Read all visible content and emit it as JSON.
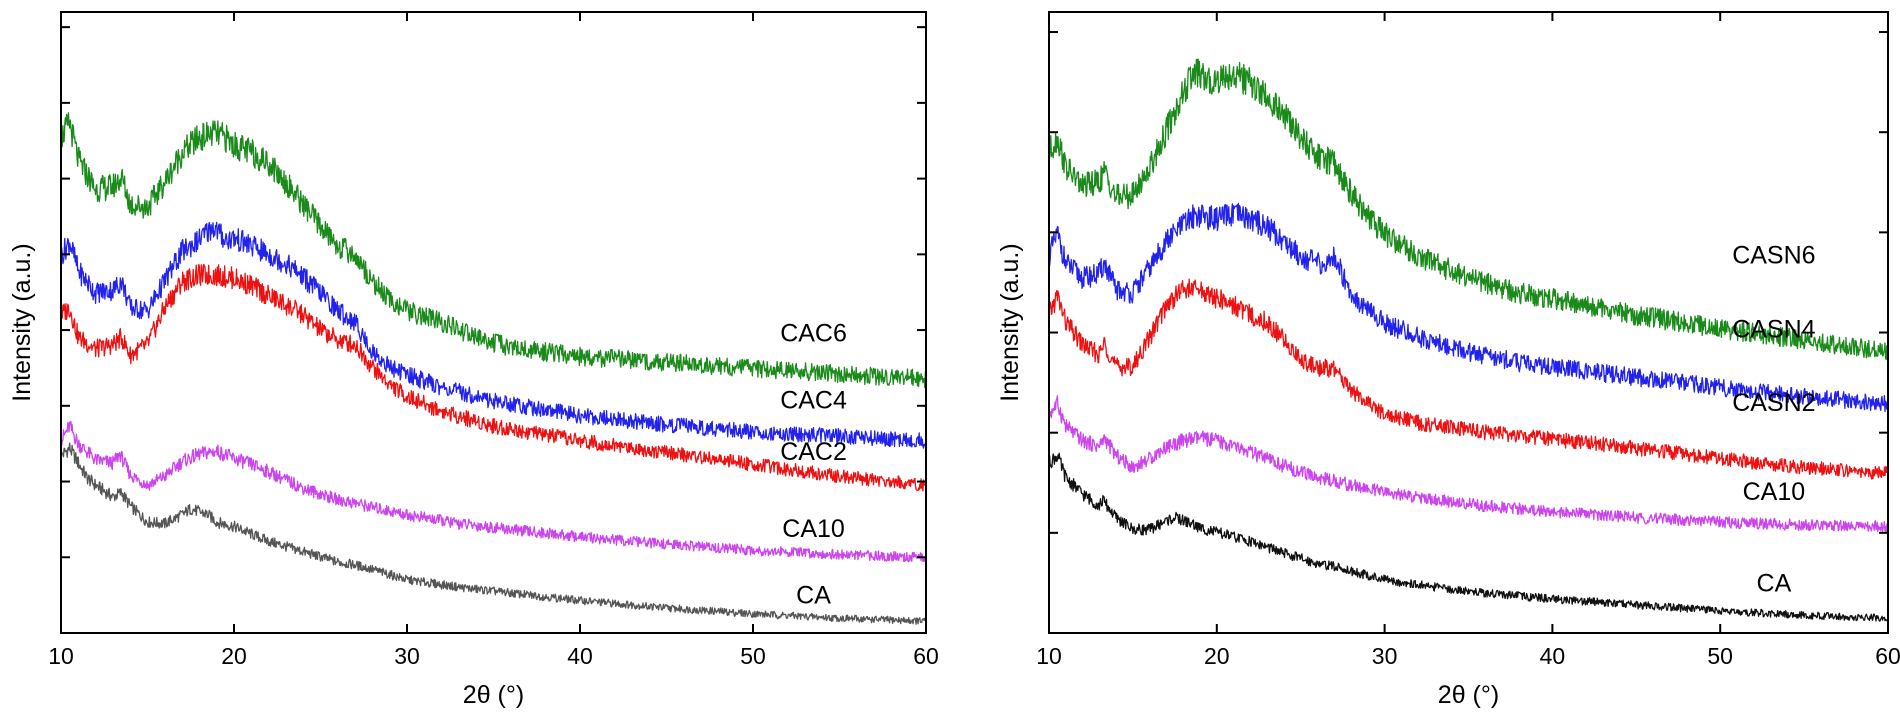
{
  "chart_data": [
    {
      "type": "line",
      "panel": "left",
      "xlabel": "2θ (°)",
      "ylabel": "Intensity (a.u.)",
      "xlim": [
        10,
        60
      ],
      "xticks": [
        10,
        20,
        30,
        40,
        50,
        60
      ],
      "y_tick_labels_shown": false,
      "grid": false,
      "legend": "none (curves labeled directly at right)",
      "y_scale": "arbitrary units, curves vertically offset",
      "series": [
        {
          "name": "CA",
          "color": "#555555",
          "label_at": [
            53.5,
            20
          ],
          "x": [
            10,
            10.5,
            11,
            11.5,
            12,
            12.5,
            13,
            13.5,
            14,
            15,
            16,
            17,
            17.5,
            18,
            18.5,
            19,
            20,
            21,
            22,
            24,
            26,
            27,
            28,
            30,
            33,
            36,
            40,
            45,
            50,
            55,
            60
          ],
          "y": [
            120,
            125,
            115,
            105,
            100,
            96,
            92,
            95,
            86,
            75,
            74,
            80,
            84,
            82,
            80,
            75,
            72,
            67,
            62,
            55,
            48,
            46,
            43,
            36,
            31,
            27,
            22,
            17,
            13,
            10,
            8
          ]
        },
        {
          "name": "CA10",
          "color": "#cc44ee",
          "label_at": [
            53.5,
            65
          ],
          "x": [
            10,
            10.5,
            11,
            12,
            13,
            13.4,
            14,
            15,
            16,
            17,
            18,
            19,
            20,
            21,
            22,
            24,
            26,
            27,
            28,
            30,
            33,
            36,
            40,
            45,
            50,
            55,
            60
          ],
          "y": [
            130,
            140,
            128,
            117,
            115,
            121,
            107,
            100,
            106,
            116,
            121,
            123,
            118,
            114,
            109,
            98,
            90,
            88,
            85,
            80,
            74,
            70,
            65,
            60,
            56,
            53,
            51
          ]
        },
        {
          "name": "CAC2",
          "color": "#ee1111",
          "label_at": [
            53.5,
            117
          ],
          "x": [
            10,
            10.5,
            11,
            12,
            13,
            13.5,
            14,
            15,
            16,
            17,
            18,
            19,
            20,
            21,
            22,
            23,
            24,
            25,
            26,
            27,
            28,
            29,
            30,
            32,
            35,
            38,
            40,
            45,
            50,
            55,
            60
          ],
          "y": [
            215,
            220,
            200,
            192,
            195,
            200,
            188,
            195,
            220,
            238,
            242,
            242,
            240,
            235,
            228,
            222,
            215,
            205,
            198,
            195,
            180,
            168,
            160,
            150,
            140,
            134,
            130,
            122,
            114,
            106,
            100
          ]
        },
        {
          "name": "CAC4",
          "color": "#2222ee",
          "label_at": [
            53.5,
            152
          ],
          "x": [
            10,
            10.5,
            11,
            12,
            13,
            13.5,
            14,
            15,
            16,
            17,
            18,
            18.8,
            19.5,
            20,
            21,
            22,
            23,
            24,
            25,
            26,
            27,
            28,
            29,
            30,
            32,
            35,
            38,
            40,
            45,
            50,
            55,
            60
          ],
          "y": [
            255,
            265,
            245,
            230,
            232,
            238,
            220,
            218,
            238,
            258,
            266,
            275,
            266,
            267,
            262,
            256,
            250,
            241,
            230,
            218,
            210,
            190,
            180,
            175,
            166,
            157,
            151,
            147,
            141,
            136,
            133,
            130
          ]
        },
        {
          "name": "CAC6",
          "color": "#1a8a1a",
          "label_at": [
            53.5,
            197
          ],
          "x": [
            10,
            10.5,
            11,
            12,
            13,
            13.5,
            14,
            15,
            16,
            17,
            18,
            18.8,
            19.5,
            20,
            21,
            22,
            23,
            24,
            25,
            26,
            27,
            28,
            29,
            30,
            32,
            34,
            36,
            40,
            45,
            50,
            55,
            60
          ],
          "y": [
            335,
            345,
            320,
            300,
            302,
            308,
            290,
            288,
            305,
            325,
            335,
            338,
            335,
            330,
            325,
            318,
            305,
            290,
            275,
            262,
            255,
            238,
            225,
            218,
            210,
            200,
            193,
            187,
            183,
            179,
            175,
            172
          ]
        }
      ]
    },
    {
      "type": "line",
      "panel": "right",
      "xlabel": "2θ (°)",
      "ylabel": "Intensity (a.u.)",
      "xlim": [
        10,
        60
      ],
      "xticks": [
        10,
        20,
        30,
        40,
        50,
        60
      ],
      "y_tick_labels_shown": false,
      "grid": false,
      "legend": "none (curves labeled directly at right)",
      "y_scale": "arbitrary units, curves vertically offset",
      "series": [
        {
          "name": "CA",
          "color": "#111111",
          "label_at": [
            53.2,
            28
          ],
          "x": [
            10,
            10.5,
            11,
            12,
            13,
            13.2,
            14,
            15,
            16,
            17,
            17.5,
            18,
            18.5,
            19,
            20,
            22,
            24,
            26,
            27,
            28,
            30,
            33,
            36,
            40,
            45,
            50,
            55,
            60
          ],
          "y": [
            115,
            120,
            105,
            94,
            86,
            90,
            78,
            70,
            70,
            76,
            78,
            76,
            74,
            71,
            68,
            62,
            54,
            47,
            45,
            42,
            36,
            31,
            27,
            23,
            19,
            15,
            12,
            10
          ]
        },
        {
          "name": "CA10",
          "color": "#cc44ee",
          "label_at": [
            53.2,
            90
          ],
          "x": [
            10,
            10.5,
            11,
            12,
            13,
            13.3,
            14,
            15,
            16,
            17,
            18,
            19,
            20,
            21,
            22,
            24,
            26,
            27,
            28,
            30,
            33,
            36,
            40,
            45,
            50,
            55,
            60
          ],
          "y": [
            148,
            155,
            140,
            130,
            126,
            132,
            120,
            112,
            118,
            126,
            130,
            132,
            130,
            126,
            122,
            113,
            105,
            103,
            100,
            95,
            90,
            86,
            82,
            78,
            75,
            73,
            72
          ]
        },
        {
          "name": "CASN2",
          "color": "#ee1111",
          "label_at": [
            53.2,
            150
          ],
          "x": [
            10,
            10.5,
            11,
            12,
            13,
            13.3,
            14,
            15,
            16,
            17,
            18,
            19,
            20,
            21,
            22,
            23,
            24,
            25,
            26,
            27,
            28,
            29,
            30,
            32,
            35,
            38,
            40,
            45,
            50,
            55,
            60
          ],
          "y": [
            215,
            228,
            210,
            195,
            188,
            196,
            180,
            180,
            200,
            222,
            233,
            232,
            226,
            222,
            215,
            210,
            198,
            185,
            180,
            178,
            165,
            155,
            148,
            142,
            137,
            133,
            131,
            125,
            118,
            112,
            108
          ]
        },
        {
          "name": "CASN4",
          "color": "#2222ee",
          "label_at": [
            53.2,
            200
          ],
          "x": [
            10,
            10.5,
            11,
            12,
            13,
            13.3,
            14,
            15,
            16,
            17,
            18,
            18.7,
            20,
            21,
            22,
            23,
            24,
            25,
            26,
            26.5,
            27,
            28,
            29,
            30,
            32,
            35,
            38,
            40,
            45,
            50,
            55,
            60
          ],
          "y": [
            255,
            270,
            250,
            240,
            243,
            250,
            232,
            230,
            247,
            265,
            276,
            283,
            280,
            283,
            280,
            275,
            265,
            255,
            250,
            248,
            255,
            230,
            218,
            210,
            200,
            190,
            183,
            180,
            173,
            166,
            160,
            155
          ]
        },
        {
          "name": "CASN6",
          "color": "#1a8a1a",
          "label_at": [
            53.2,
            250
          ],
          "x": [
            10,
            10.5,
            11,
            12,
            13,
            13.3,
            14,
            15,
            16,
            17,
            18,
            18.7,
            19.5,
            20,
            21,
            22,
            23,
            24,
            25,
            26,
            27,
            28,
            29,
            30,
            32,
            35,
            38,
            40,
            45,
            50,
            55,
            60
          ],
          "y": [
            325,
            335,
            315,
            302,
            305,
            312,
            295,
            296,
            315,
            340,
            365,
            380,
            372,
            375,
            378,
            372,
            362,
            350,
            335,
            322,
            318,
            298,
            282,
            270,
            255,
            240,
            230,
            226,
            215,
            206,
            198,
            190
          ]
        }
      ]
    }
  ]
}
